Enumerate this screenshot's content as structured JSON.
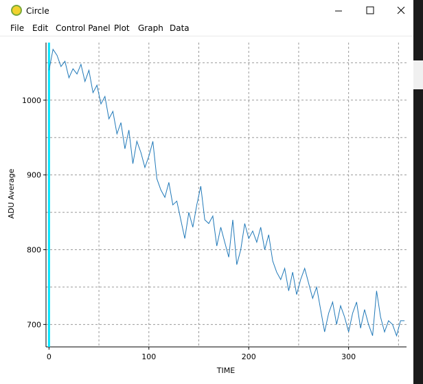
{
  "window": {
    "title": "Circle"
  },
  "menu": [
    "File",
    "Edit",
    "Control Panel",
    "Plot",
    "Graph",
    "Data"
  ],
  "chart_data": {
    "type": "line",
    "xlabel": "TIME",
    "ylabel": "ADU Average",
    "xlim": [
      -3,
      358
    ],
    "ylim": [
      670,
      1077
    ],
    "xticks": [
      0,
      100,
      200,
      300
    ],
    "yticks": [
      700,
      800,
      900,
      1000
    ],
    "xminor": [
      50,
      150,
      250,
      350
    ],
    "yminor": [
      750,
      850,
      950,
      1050
    ],
    "grid": true,
    "marker_x": 0,
    "marker_color": "#00e5ff",
    "series": [
      {
        "name": "ADU Average",
        "color": "#1f78b8",
        "x": [
          0,
          4,
          8,
          12,
          16,
          20,
          24,
          28,
          32,
          36,
          40,
          44,
          48,
          52,
          56,
          60,
          64,
          68,
          72,
          76,
          80,
          84,
          88,
          92,
          96,
          100,
          104,
          108,
          112,
          116,
          120,
          124,
          128,
          132,
          136,
          140,
          144,
          148,
          152,
          156,
          160,
          164,
          168,
          172,
          176,
          180,
          184,
          188,
          192,
          196,
          200,
          204,
          208,
          212,
          216,
          220,
          224,
          228,
          232,
          236,
          240,
          244,
          248,
          252,
          256,
          260,
          264,
          268,
          272,
          276,
          280,
          284,
          288,
          292,
          296,
          300,
          304,
          308,
          312,
          316,
          320,
          324,
          328,
          332,
          336,
          340,
          344,
          348,
          352,
          356
        ],
        "values": [
          1040,
          1068,
          1060,
          1045,
          1052,
          1030,
          1042,
          1035,
          1048,
          1025,
          1040,
          1010,
          1020,
          995,
          1005,
          975,
          985,
          955,
          970,
          935,
          960,
          915,
          945,
          930,
          910,
          925,
          945,
          895,
          880,
          870,
          890,
          860,
          865,
          840,
          815,
          850,
          830,
          860,
          885,
          840,
          835,
          845,
          805,
          830,
          810,
          790,
          840,
          780,
          800,
          835,
          815,
          825,
          810,
          830,
          800,
          820,
          785,
          770,
          760,
          775,
          745,
          770,
          740,
          760,
          775,
          755,
          735,
          750,
          720,
          690,
          715,
          730,
          700,
          725,
          710,
          690,
          715,
          730,
          695,
          720,
          700,
          685,
          745,
          710,
          690,
          705,
          700,
          685,
          705,
          705
        ]
      }
    ]
  }
}
